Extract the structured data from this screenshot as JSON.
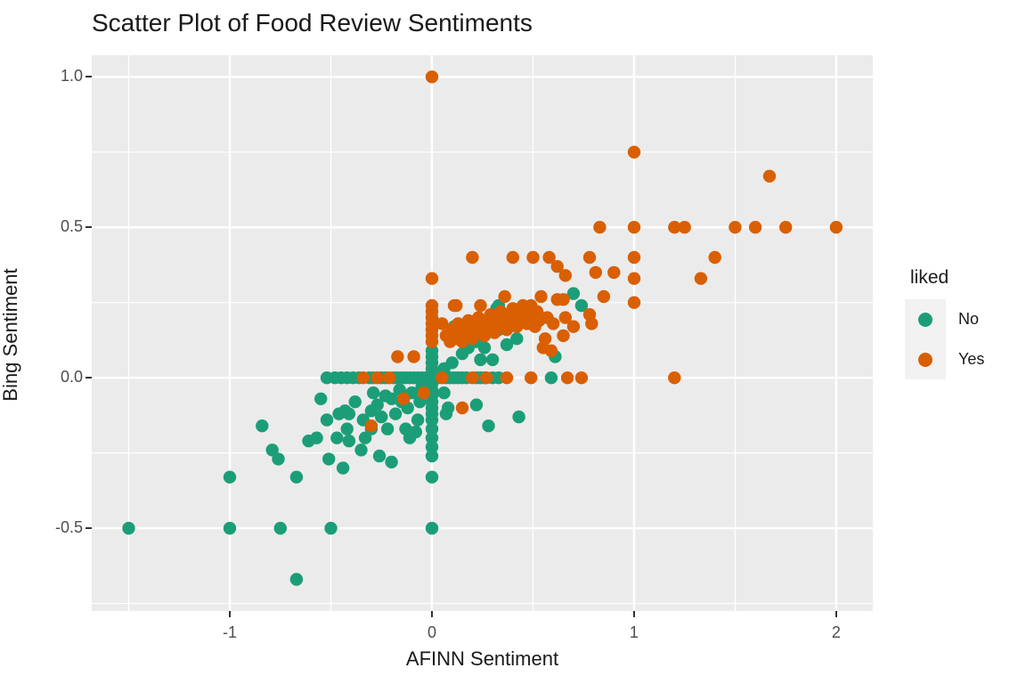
{
  "chart_data": {
    "type": "scatter",
    "title": "Scatter Plot of Food Review Sentiments",
    "xlabel": "AFINN Sentiment",
    "ylabel": "Bing Sentiment",
    "xlim": [
      -1.683,
      2.181
    ],
    "ylim": [
      -0.775,
      1.072
    ],
    "grid": "major white + minor white on gray panel",
    "x_axis": {
      "ticks": [
        {
          "v": -1,
          "label": "-1"
        },
        {
          "v": 0,
          "label": "0"
        },
        {
          "v": 1,
          "label": "1"
        },
        {
          "v": 2,
          "label": "2"
        }
      ],
      "minor": [
        -1.5,
        -0.5,
        0.5,
        1.5
      ]
    },
    "y_axis": {
      "ticks": [
        {
          "v": 1.0,
          "label": "1.0"
        },
        {
          "v": 0.5,
          "label": "0.5"
        },
        {
          "v": 0.0,
          "label": "0.0"
        },
        {
          "v": -0.5,
          "label": "-0.5"
        }
      ],
      "minor": [
        0.75,
        0.25,
        -0.25,
        -0.75
      ]
    },
    "legend": {
      "title": "liked",
      "position": "right",
      "entries": [
        {
          "label": "No",
          "color": "#1B9E77"
        },
        {
          "label": "Yes",
          "color": "#D95F02"
        }
      ]
    },
    "point_radius": 7.2,
    "series": [
      {
        "name": "No",
        "color": "#1B9E77",
        "points": [
          [
            -1.5,
            -0.5
          ],
          [
            -1,
            -0.5
          ],
          [
            -1,
            -0.33
          ],
          [
            -0.75,
            -0.5
          ],
          [
            -0.67,
            -0.67
          ],
          [
            -0.67,
            -0.33
          ],
          [
            -0.5,
            -0.5
          ],
          [
            0,
            -0.5
          ],
          [
            0,
            -0.33
          ],
          [
            -0.84,
            -0.16
          ],
          [
            -0.79,
            -0.24
          ],
          [
            -0.76,
            -0.27
          ],
          [
            -0.61,
            -0.21
          ],
          [
            -0.57,
            -0.2
          ],
          [
            -0.55,
            -0.07
          ],
          [
            -0.52,
            -0.14
          ],
          [
            -0.51,
            -0.27
          ],
          [
            -0.47,
            -0.2
          ],
          [
            -0.46,
            -0.12
          ],
          [
            -0.44,
            -0.3
          ],
          [
            -0.43,
            -0.11
          ],
          [
            -0.42,
            -0.17
          ],
          [
            -0.41,
            -0.12
          ],
          [
            -0.41,
            -0.21
          ],
          [
            -0.38,
            -0.08
          ],
          [
            -0.35,
            -0.24
          ],
          [
            -0.34,
            -0.14
          ],
          [
            -0.33,
            -0.2
          ],
          [
            -0.3,
            -0.17
          ],
          [
            -0.3,
            -0.11
          ],
          [
            -0.29,
            -0.05
          ],
          [
            -0.27,
            -0.09
          ],
          [
            -0.26,
            -0.26
          ],
          [
            -0.25,
            -0.13
          ],
          [
            -0.23,
            -0.06
          ],
          [
            -0.22,
            -0.17
          ],
          [
            -0.2,
            -0.28
          ],
          [
            -0.2,
            -0.07
          ],
          [
            -0.18,
            -0.12
          ],
          [
            -0.16,
            -0.04
          ],
          [
            -0.15,
            -0.08
          ],
          [
            -0.13,
            -0.17
          ],
          [
            -0.12,
            -0.1
          ],
          [
            -0.11,
            -0.2
          ],
          [
            -0.1,
            -0.05
          ],
          [
            -0.08,
            -0.18
          ],
          [
            -0.07,
            -0.14
          ],
          [
            -0.06,
            -0.08
          ],
          [
            -0.05,
            -0.03
          ],
          [
            0,
            -0.02
          ],
          [
            0,
            -0.04
          ],
          [
            0,
            -0.06
          ],
          [
            0,
            -0.08
          ],
          [
            0,
            -0.1
          ],
          [
            0,
            -0.12
          ],
          [
            0,
            -0.14
          ],
          [
            0,
            -0.17
          ],
          [
            0,
            -0.2
          ],
          [
            0,
            -0.23
          ],
          [
            0,
            -0.26
          ],
          [
            0,
            0.01
          ],
          [
            0,
            0.03
          ],
          [
            0,
            0.05
          ],
          [
            0,
            0.07
          ],
          [
            0,
            0.09
          ],
          [
            -0.52,
            0
          ],
          [
            -0.48,
            0
          ],
          [
            -0.45,
            0
          ],
          [
            -0.42,
            0
          ],
          [
            -0.39,
            0
          ],
          [
            -0.36,
            0
          ],
          [
            -0.31,
            0
          ],
          [
            -0.29,
            0
          ],
          [
            -0.25,
            0
          ],
          [
            -0.23,
            0
          ],
          [
            -0.19,
            0
          ],
          [
            -0.17,
            0
          ],
          [
            -0.15,
            0
          ],
          [
            -0.13,
            0
          ],
          [
            -0.11,
            0
          ],
          [
            -0.09,
            0
          ],
          [
            -0.07,
            0
          ],
          [
            -0.05,
            0
          ],
          [
            -0.03,
            0
          ],
          [
            -0.01,
            0
          ],
          [
            0.01,
            0
          ],
          [
            0.03,
            0
          ],
          [
            0.07,
            0
          ],
          [
            0.09,
            0
          ],
          [
            0.11,
            0
          ],
          [
            0.13,
            0
          ],
          [
            0.15,
            0
          ],
          [
            0.17,
            0
          ],
          [
            0.22,
            0
          ],
          [
            0.24,
            0
          ],
          [
            0.26,
            0
          ],
          [
            0.3,
            0
          ],
          [
            0.33,
            0
          ],
          [
            0.59,
            0
          ],
          [
            0.11,
            0.17
          ],
          [
            0.15,
            0.08
          ],
          [
            0.18,
            0.1
          ],
          [
            0.22,
            0.12
          ],
          [
            0.26,
            0.1
          ],
          [
            0.3,
            0.06
          ],
          [
            0.32,
            0.23
          ],
          [
            0.33,
            0.24
          ],
          [
            0.33,
            0.16
          ],
          [
            0.37,
            0.11
          ],
          [
            0.42,
            0.13
          ],
          [
            0.61,
            0.07
          ],
          [
            0.7,
            0.28
          ],
          [
            0.74,
            0.24
          ],
          [
            0.24,
            0.06
          ],
          [
            0.1,
            0.05
          ],
          [
            0.06,
            0.03
          ],
          [
            0.06,
            -0.05
          ],
          [
            0.07,
            -0.12
          ],
          [
            0.08,
            -0.1
          ],
          [
            0.22,
            -0.09
          ],
          [
            0.28,
            -0.16
          ],
          [
            0.43,
            -0.13
          ]
        ]
      },
      {
        "name": "Yes",
        "color": "#D95F02",
        "points": [
          [
            0,
            1
          ],
          [
            0,
            0.33
          ],
          [
            1,
            0.75
          ],
          [
            1.67,
            0.67
          ],
          [
            0.83,
            0.5
          ],
          [
            1,
            0.5
          ],
          [
            1.2,
            0.5
          ],
          [
            1.25,
            0.5
          ],
          [
            1.5,
            0.5
          ],
          [
            1.6,
            0.5
          ],
          [
            1.75,
            0.5
          ],
          [
            2,
            0.5
          ],
          [
            0.2,
            0.4
          ],
          [
            0.4,
            0.4
          ],
          [
            0.5,
            0.4
          ],
          [
            0.58,
            0.4
          ],
          [
            0.62,
            0.37
          ],
          [
            0.78,
            0.4
          ],
          [
            1,
            0.4
          ],
          [
            1.4,
            0.4
          ],
          [
            0.66,
            0.34
          ],
          [
            0.81,
            0.35
          ],
          [
            0.9,
            0.35
          ],
          [
            1,
            0.33
          ],
          [
            1.33,
            0.33
          ],
          [
            1,
            0.25
          ],
          [
            1.2,
            0
          ],
          [
            0.85,
            0.27
          ],
          [
            0,
            0.12
          ],
          [
            0,
            0.14
          ],
          [
            0,
            0.16
          ],
          [
            0,
            0.18
          ],
          [
            0,
            0.2
          ],
          [
            0,
            0.22
          ],
          [
            0,
            0.24
          ],
          [
            -0.34,
            0
          ],
          [
            -0.27,
            0
          ],
          [
            -0.21,
            0
          ],
          [
            0.05,
            0
          ],
          [
            0.2,
            0
          ],
          [
            0.27,
            0
          ],
          [
            0.37,
            0
          ],
          [
            0.49,
            0
          ],
          [
            0.67,
            0
          ],
          [
            0.74,
            0
          ],
          [
            -0.3,
            -0.16
          ],
          [
            -0.14,
            -0.07
          ],
          [
            -0.17,
            0.07
          ],
          [
            -0.09,
            0.07
          ],
          [
            -0.04,
            -0.05
          ],
          [
            0.15,
            -0.1
          ],
          [
            0.05,
            0.18
          ],
          [
            0.07,
            0.14
          ],
          [
            0.09,
            0.12
          ],
          [
            0.1,
            0.16
          ],
          [
            0.11,
            0.24
          ],
          [
            0.12,
            0.13
          ],
          [
            0.12,
            0.24
          ],
          [
            0.13,
            0.18
          ],
          [
            0.14,
            0.15
          ],
          [
            0.15,
            0.12
          ],
          [
            0.16,
            0.17
          ],
          [
            0.17,
            0.14
          ],
          [
            0.18,
            0.19
          ],
          [
            0.19,
            0.16
          ],
          [
            0.2,
            0.13
          ],
          [
            0.21,
            0.18
          ],
          [
            0.22,
            0.15
          ],
          [
            0.23,
            0.2
          ],
          [
            0.24,
            0.24
          ],
          [
            0.25,
            0.17
          ],
          [
            0.26,
            0.14
          ],
          [
            0.27,
            0.19
          ],
          [
            0.28,
            0.16
          ],
          [
            0.29,
            0.21
          ],
          [
            0.3,
            0.18
          ],
          [
            0.31,
            0.15
          ],
          [
            0.32,
            0.2
          ],
          [
            0.33,
            0.17
          ],
          [
            0.34,
            0.22
          ],
          [
            0.35,
            0.19
          ],
          [
            0.36,
            0.27
          ],
          [
            0.37,
            0.16
          ],
          [
            0.38,
            0.21
          ],
          [
            0.39,
            0.18
          ],
          [
            0.4,
            0.23
          ],
          [
            0.41,
            0.2
          ],
          [
            0.42,
            0.17
          ],
          [
            0.43,
            0.22
          ],
          [
            0.44,
            0.19
          ],
          [
            0.45,
            0.24
          ],
          [
            0.46,
            0.21
          ],
          [
            0.47,
            0.18
          ],
          [
            0.48,
            0.23
          ],
          [
            0.49,
            0.24
          ],
          [
            0.5,
            0.2
          ],
          [
            0.51,
            0.17
          ],
          [
            0.52,
            0.22
          ],
          [
            0.53,
            0.19
          ],
          [
            0.54,
            0.27
          ],
          [
            0.55,
            0.1
          ],
          [
            0.56,
            0.13
          ],
          [
            0.57,
            0.2
          ],
          [
            0.59,
            0.09
          ],
          [
            0.6,
            0.18
          ],
          [
            0.62,
            0.26
          ],
          [
            0.65,
            0.26
          ],
          [
            0.65,
            0.14
          ],
          [
            0.66,
            0.2
          ],
          [
            0.7,
            0.17
          ],
          [
            0.78,
            0.21
          ],
          [
            0.79,
            0.18
          ]
        ]
      }
    ],
    "panel_color": "#EBEBEB",
    "grid_color": "#FFFFFF",
    "tick_text_color": "#4D4D4D"
  }
}
